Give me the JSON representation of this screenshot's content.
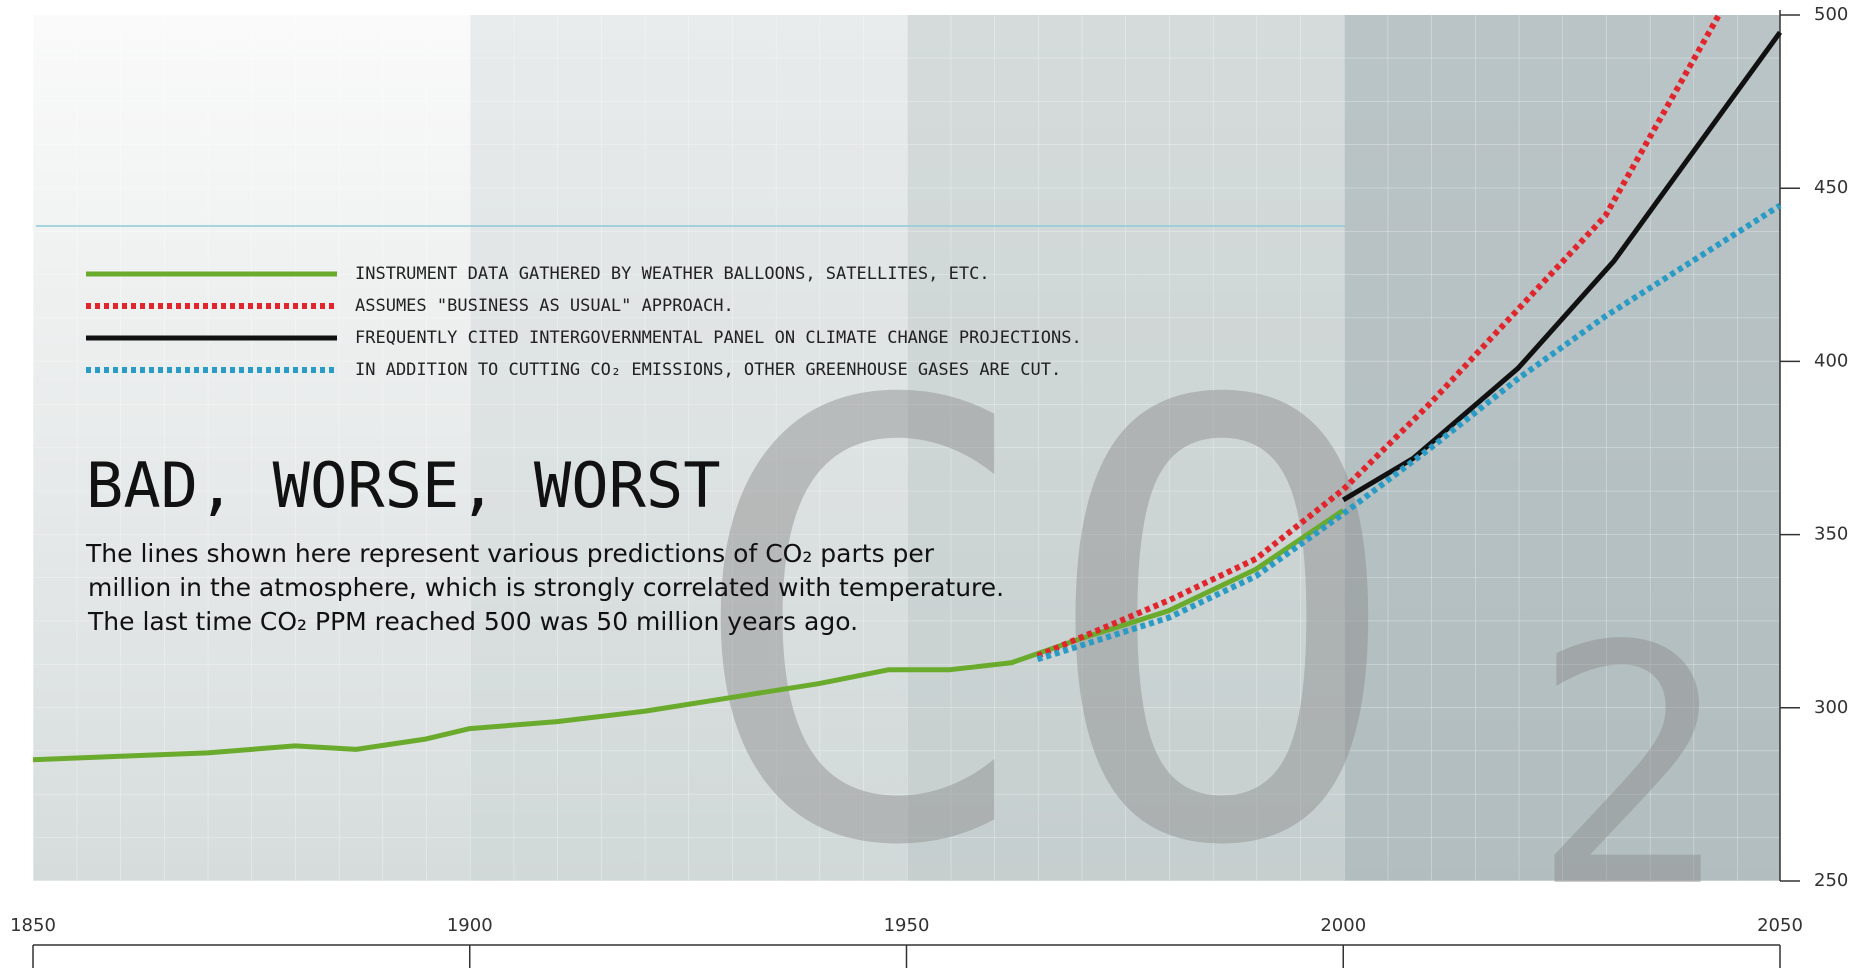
{
  "chart_data": {
    "type": "line",
    "title": "BAD, WORSE, WORST",
    "description": [
      "The lines shown here represent various predictions of CO₂ parts per",
      "million in the atmosphere, which is strongly correlated with temperature.",
      "The last time CO₂ PPM reached 500 was 50 million years ago."
    ],
    "watermark": {
      "main": "CO",
      "sub": "2"
    },
    "xlim": [
      1850,
      2050
    ],
    "xticks": [
      1850,
      1900,
      1950,
      2000,
      2050
    ],
    "ylim": [
      250,
      500
    ],
    "yticks": [
      250,
      300,
      350,
      400,
      450,
      500
    ],
    "series": [
      {
        "name": "INSTRUMENT DATA GATHERED BY WEATHER BALLOONS, SATELLITES, ETC.",
        "color": "#6aab2e",
        "style": "solid",
        "x": [
          1850,
          1860,
          1870,
          1880,
          1887,
          1895,
          1900,
          1910,
          1920,
          1930,
          1940,
          1948,
          1955,
          1962,
          1970,
          1980,
          1990,
          2000
        ],
        "values": [
          285,
          286,
          287,
          289,
          288,
          291,
          294,
          296,
          299,
          303,
          307,
          311,
          311,
          313,
          320,
          328,
          340,
          357
        ]
      },
      {
        "name": "ASSUMES \"BUSINESS AS USUAL\" APPROACH.",
        "color": "#e0262c",
        "style": "dotted",
        "x": [
          1965,
          1980,
          1990,
          2000,
          2010,
          2020,
          2030,
          2043
        ],
        "values": [
          315,
          331,
          343,
          363,
          388,
          415,
          442,
          500
        ]
      },
      {
        "name": "FREQUENTLY CITED INTERGOVERNMENTAL PANEL ON CLIMATE CHANGE PROJECTIONS.",
        "color": "#111111",
        "style": "solid",
        "x": [
          2000,
          2008,
          2020,
          2031,
          2050
        ],
        "values": [
          360,
          372,
          398,
          429,
          495
        ]
      },
      {
        "name": "IN ADDITION TO CUTTING CO₂ EMISSIONS, OTHER GREENHOUSE GASES ARE CUT.",
        "color": "#2a9bc4",
        "style": "dotted",
        "x": [
          1965,
          1980,
          1990,
          2000,
          2010,
          2020,
          2030,
          2050
        ],
        "values": [
          314,
          326,
          338,
          356,
          375,
          395,
          413,
          445
        ]
      }
    ]
  }
}
